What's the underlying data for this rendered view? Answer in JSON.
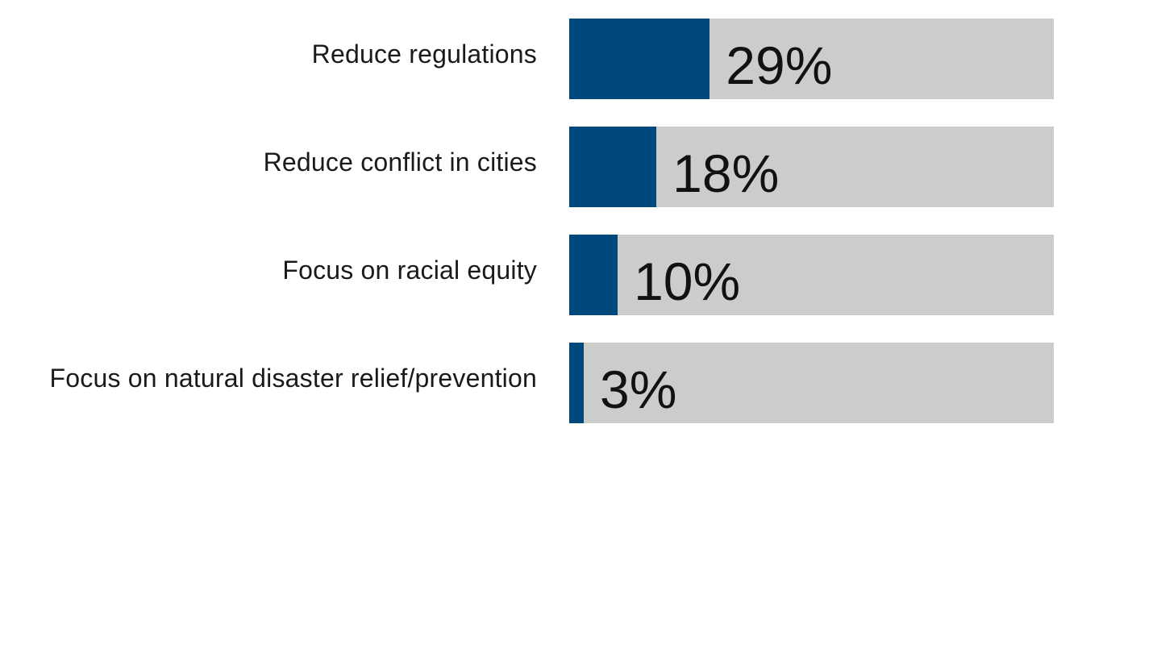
{
  "colors": {
    "fill": "#00477b",
    "track": "#cbcdcb",
    "text": "#1a1a1a"
  },
  "chart_data": {
    "type": "bar",
    "orientation": "horizontal",
    "categories": [
      "Reduce regulations",
      "Reduce conflict in cities",
      "Focus on racial equity",
      "Focus on natural disaster relief/prevention"
    ],
    "values": [
      29,
      18,
      10,
      3
    ],
    "value_labels": [
      "29%",
      "18%",
      "10%",
      "3%"
    ],
    "xlim": [
      0,
      100
    ],
    "grid": false,
    "legend": "none"
  }
}
